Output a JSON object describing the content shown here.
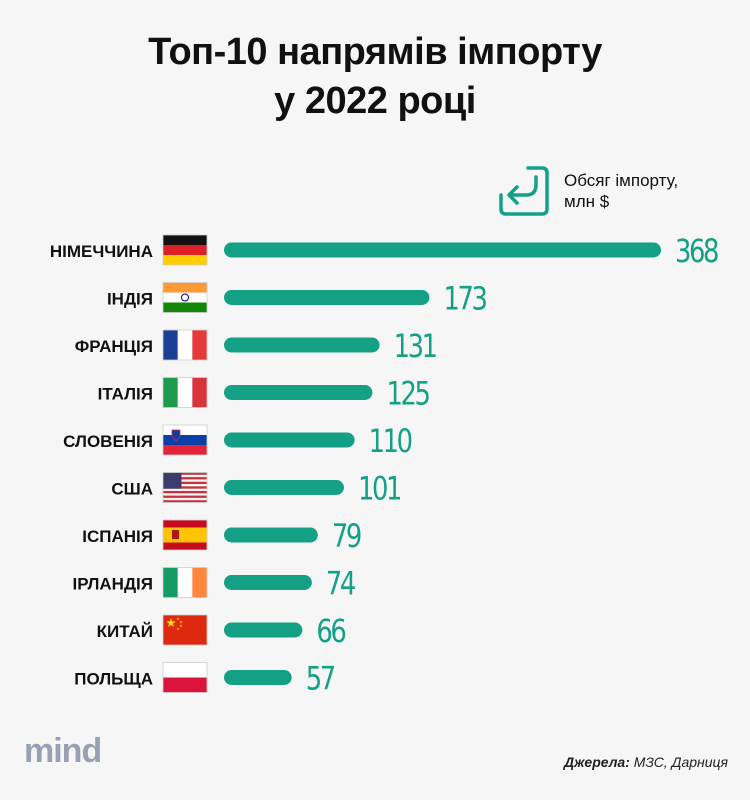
{
  "title_line1": "Топ-10 напрямів імпорту",
  "title_line2": "у 2022 році",
  "legend": {
    "label_line1": "Обсяг імпорту,",
    "label_line2": "млн $",
    "icon": "import-arrow-icon"
  },
  "colors": {
    "bar": "#14a085",
    "value_text": "#14a085",
    "background": "#f6f6f6",
    "logo": "#9aa0b4"
  },
  "chart_data": {
    "type": "bar",
    "orientation": "horizontal",
    "categories": [
      "НІМЕЧЧИНА",
      "ІНДІЯ",
      "ФРАНЦІЯ",
      "ІТАЛІЯ",
      "СЛОВЕНІЯ",
      "США",
      "ІСПАНІЯ",
      "ІРЛАНДІЯ",
      "КИТАЙ",
      "ПОЛЬЩА"
    ],
    "flags": [
      "germany-flag-icon",
      "india-flag-icon",
      "france-flag-icon",
      "italy-flag-icon",
      "slovenia-flag-icon",
      "usa-flag-icon",
      "spain-flag-icon",
      "ireland-flag-icon",
      "china-flag-icon",
      "poland-flag-icon"
    ],
    "values": [
      368,
      173,
      131,
      125,
      110,
      101,
      79,
      74,
      66,
      57
    ],
    "value_labels": [
      "368",
      "173",
      "131",
      "125",
      "110",
      "101",
      "79",
      "74",
      "66",
      "57"
    ],
    "xlim": [
      0,
      368
    ],
    "grid": false
  },
  "footer": {
    "logo": "mind",
    "source_label": "Джерела:",
    "source_text": " МЗС, Дарниця"
  }
}
